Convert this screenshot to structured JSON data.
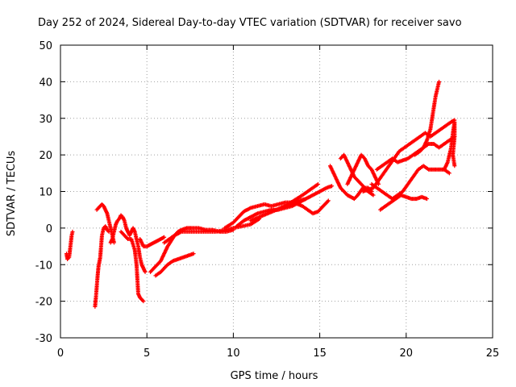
{
  "chart_data": {
    "type": "scatter",
    "title": "Day 252 of 2024, Sidereal Day-to-day VTEC variation (SDTVAR) for receiver savo",
    "xlabel": "GPS time / hours",
    "ylabel": "SDTVAR / TECUs",
    "xlim": [
      0,
      25
    ],
    "ylim": [
      -30,
      50
    ],
    "x_ticks": [
      0,
      5,
      10,
      15,
      20,
      25
    ],
    "y_ticks": [
      -30,
      -20,
      -10,
      0,
      10,
      20,
      30,
      40,
      50
    ],
    "grid": true,
    "marker": "+",
    "color": "#ff0000",
    "series": [
      {
        "name": "s1",
        "points": [
          [
            0.35,
            -7
          ],
          [
            0.4,
            -8.5
          ],
          [
            0.5,
            -8
          ],
          [
            0.55,
            -6
          ],
          [
            0.6,
            -4
          ],
          [
            0.65,
            -2
          ],
          [
            0.7,
            -1
          ]
        ]
      },
      {
        "name": "s2",
        "points": [
          [
            2.0,
            -21.5
          ],
          [
            2.05,
            -19
          ],
          [
            2.1,
            -16
          ],
          [
            2.15,
            -13
          ],
          [
            2.2,
            -10.5
          ],
          [
            2.3,
            -8
          ],
          [
            2.35,
            -5
          ],
          [
            2.4,
            -2
          ],
          [
            2.5,
            0
          ],
          [
            2.6,
            0.5
          ],
          [
            2.7,
            -0.5
          ],
          [
            2.8,
            -1
          ]
        ]
      },
      {
        "name": "s3",
        "points": [
          [
            2.1,
            5
          ],
          [
            2.2,
            5.5
          ],
          [
            2.3,
            6
          ],
          [
            2.4,
            6.5
          ],
          [
            2.5,
            6
          ],
          [
            2.6,
            5
          ],
          [
            2.7,
            4
          ],
          [
            2.8,
            2
          ],
          [
            2.9,
            0
          ],
          [
            3.0,
            -2
          ],
          [
            3.1,
            -4
          ]
        ]
      },
      {
        "name": "s4",
        "points": [
          [
            2.9,
            -4
          ],
          [
            3.0,
            -3
          ],
          [
            3.1,
            -1
          ],
          [
            3.2,
            1
          ],
          [
            3.3,
            2
          ],
          [
            3.4,
            2.5
          ],
          [
            3.5,
            3.5
          ],
          [
            3.6,
            3
          ],
          [
            3.7,
            2
          ],
          [
            3.8,
            0
          ],
          [
            3.9,
            -1
          ],
          [
            4.0,
            -2
          ],
          [
            4.1,
            -1
          ],
          [
            4.2,
            0
          ],
          [
            4.3,
            -1
          ],
          [
            4.4,
            -3
          ],
          [
            4.5,
            -5
          ],
          [
            4.6,
            -8
          ],
          [
            4.7,
            -10
          ],
          [
            4.8,
            -11
          ],
          [
            4.9,
            -12
          ]
        ]
      },
      {
        "name": "s5",
        "points": [
          [
            3.5,
            -1
          ],
          [
            3.7,
            -2
          ],
          [
            3.9,
            -3
          ],
          [
            4.1,
            -3
          ],
          [
            4.3,
            -6
          ],
          [
            4.4,
            -10
          ],
          [
            4.45,
            -14
          ],
          [
            4.5,
            -18
          ],
          [
            4.6,
            -19
          ],
          [
            4.7,
            -19.5
          ],
          [
            4.8,
            -20
          ]
        ]
      },
      {
        "name": "s6",
        "points": [
          [
            4.6,
            -3
          ],
          [
            4.8,
            -5
          ],
          [
            5.0,
            -5
          ],
          [
            5.2,
            -4.5
          ],
          [
            5.4,
            -4
          ],
          [
            5.6,
            -3.5
          ],
          [
            5.8,
            -3
          ],
          [
            6.0,
            -2.5
          ]
        ]
      },
      {
        "name": "s7",
        "points": [
          [
            5.2,
            -12
          ],
          [
            5.4,
            -11
          ],
          [
            5.6,
            -10
          ],
          [
            5.8,
            -9
          ],
          [
            6.0,
            -7
          ],
          [
            6.2,
            -5
          ],
          [
            6.4,
            -3.5
          ],
          [
            6.6,
            -2
          ],
          [
            6.8,
            -1
          ],
          [
            7.0,
            -0.5
          ],
          [
            7.3,
            0
          ],
          [
            7.6,
            0
          ],
          [
            8.0,
            0
          ],
          [
            8.4,
            -0.5
          ],
          [
            8.8,
            -0.5
          ],
          [
            9.2,
            -1
          ],
          [
            9.6,
            -1
          ],
          [
            10.0,
            -0.5
          ]
        ]
      },
      {
        "name": "s8",
        "points": [
          [
            5.5,
            -13
          ],
          [
            5.8,
            -12
          ],
          [
            6.0,
            -11
          ],
          [
            6.2,
            -10
          ],
          [
            6.5,
            -9
          ],
          [
            6.8,
            -8.5
          ],
          [
            7.1,
            -8
          ],
          [
            7.4,
            -7.5
          ],
          [
            7.7,
            -7
          ]
        ]
      },
      {
        "name": "s9",
        "points": [
          [
            6.0,
            -4
          ],
          [
            6.3,
            -3
          ],
          [
            6.6,
            -2
          ],
          [
            7.0,
            -1
          ],
          [
            7.5,
            -1
          ],
          [
            8.0,
            -1
          ],
          [
            8.5,
            -1
          ],
          [
            9.0,
            -1
          ],
          [
            9.5,
            -0.5
          ],
          [
            10.0,
            0
          ],
          [
            10.5,
            0.5
          ],
          [
            11.0,
            1
          ],
          [
            11.5,
            2.5
          ]
        ]
      },
      {
        "name": "s10",
        "points": [
          [
            9.5,
            0
          ],
          [
            10.0,
            1.5
          ],
          [
            10.3,
            3
          ],
          [
            10.6,
            4.5
          ],
          [
            11.0,
            5.5
          ],
          [
            11.4,
            6
          ],
          [
            11.8,
            6.5
          ],
          [
            12.2,
            6
          ],
          [
            12.6,
            6.5
          ],
          [
            13.0,
            7
          ],
          [
            13.4,
            7
          ],
          [
            13.8,
            7.5
          ],
          [
            14.2,
            8
          ]
        ]
      },
      {
        "name": "s11",
        "points": [
          [
            10.2,
            0.5
          ],
          [
            10.6,
            2
          ],
          [
            11.0,
            3
          ],
          [
            11.4,
            4
          ],
          [
            11.8,
            4.5
          ],
          [
            12.2,
            5
          ],
          [
            12.6,
            5
          ],
          [
            13.0,
            5.5
          ],
          [
            13.4,
            6
          ],
          [
            13.8,
            7
          ],
          [
            14.2,
            8
          ],
          [
            14.6,
            9
          ],
          [
            15.0,
            10
          ],
          [
            15.4,
            11
          ],
          [
            15.7,
            11.5
          ]
        ]
      },
      {
        "name": "s12",
        "points": [
          [
            11.0,
            2
          ],
          [
            11.5,
            3
          ],
          [
            12.0,
            4
          ],
          [
            12.5,
            5
          ],
          [
            13.0,
            6
          ],
          [
            13.5,
            7.5
          ],
          [
            14.0,
            9
          ],
          [
            14.3,
            10
          ],
          [
            14.6,
            11
          ],
          [
            14.9,
            12
          ]
        ]
      },
      {
        "name": "s13",
        "points": [
          [
            12.0,
            4.5
          ],
          [
            12.5,
            5
          ],
          [
            13.0,
            6
          ],
          [
            13.5,
            7
          ],
          [
            14.0,
            6
          ],
          [
            14.3,
            5
          ],
          [
            14.6,
            4
          ],
          [
            14.9,
            4.5
          ],
          [
            15.2,
            6
          ],
          [
            15.5,
            7.5
          ]
        ]
      },
      {
        "name": "s14",
        "points": [
          [
            15.6,
            17
          ],
          [
            16.0,
            13
          ],
          [
            16.2,
            11
          ],
          [
            16.4,
            10
          ],
          [
            16.6,
            9
          ],
          [
            16.8,
            8.5
          ],
          [
            17.0,
            8
          ],
          [
            17.2,
            9
          ],
          [
            17.5,
            11
          ],
          [
            17.8,
            10
          ],
          [
            18.1,
            9
          ]
        ]
      },
      {
        "name": "s15",
        "points": [
          [
            16.2,
            19
          ],
          [
            16.4,
            20
          ],
          [
            16.6,
            18
          ],
          [
            16.8,
            16
          ],
          [
            17.0,
            14
          ],
          [
            17.2,
            13
          ],
          [
            17.4,
            12
          ],
          [
            17.6,
            11
          ],
          [
            17.8,
            11
          ],
          [
            18.0,
            10
          ]
        ]
      },
      {
        "name": "s16",
        "points": [
          [
            16.6,
            12
          ],
          [
            16.8,
            14
          ],
          [
            17.0,
            16
          ],
          [
            17.2,
            18
          ],
          [
            17.4,
            20
          ],
          [
            17.6,
            19
          ],
          [
            17.8,
            17
          ],
          [
            18.0,
            16
          ],
          [
            18.2,
            14
          ],
          [
            18.4,
            12
          ]
        ]
      },
      {
        "name": "s17",
        "points": [
          [
            18.0,
            12
          ],
          [
            18.3,
            11
          ],
          [
            18.6,
            10
          ],
          [
            18.9,
            9
          ],
          [
            19.2,
            8
          ],
          [
            19.5,
            9
          ],
          [
            19.8,
            10
          ],
          [
            20.1,
            12
          ],
          [
            20.4,
            14
          ],
          [
            20.7,
            16
          ],
          [
            21.0,
            17
          ],
          [
            21.3,
            16
          ],
          [
            21.6,
            16
          ],
          [
            21.9,
            16
          ],
          [
            22.2,
            16
          ],
          [
            22.5,
            15
          ]
        ]
      },
      {
        "name": "s18",
        "points": [
          [
            18.5,
            5
          ],
          [
            18.8,
            6
          ],
          [
            19.1,
            7
          ],
          [
            19.4,
            8
          ],
          [
            19.7,
            9
          ],
          [
            20.0,
            8.5
          ],
          [
            20.3,
            8
          ],
          [
            20.6,
            8
          ],
          [
            20.9,
            8.5
          ],
          [
            21.2,
            8
          ]
        ]
      },
      {
        "name": "s19",
        "points": [
          [
            17.5,
            10
          ],
          [
            17.8,
            10.5
          ],
          [
            18.1,
            11
          ],
          [
            18.4,
            13
          ],
          [
            18.7,
            15
          ],
          [
            19.0,
            17
          ],
          [
            19.3,
            19
          ],
          [
            19.6,
            21
          ],
          [
            19.9,
            22
          ],
          [
            20.2,
            23
          ],
          [
            20.5,
            24
          ],
          [
            20.8,
            25
          ],
          [
            21.1,
            26
          ],
          [
            21.4,
            25
          ],
          [
            21.7,
            26
          ],
          [
            22.0,
            27
          ],
          [
            22.3,
            28
          ],
          [
            22.6,
            29
          ],
          [
            22.8,
            29.5
          ]
        ]
      },
      {
        "name": "s20",
        "points": [
          [
            18.3,
            16
          ],
          [
            18.6,
            17
          ],
          [
            18.9,
            18
          ],
          [
            19.2,
            19
          ],
          [
            19.5,
            18
          ],
          [
            19.8,
            18.5
          ],
          [
            20.1,
            19
          ],
          [
            20.4,
            20
          ],
          [
            20.7,
            21
          ],
          [
            21.0,
            22
          ],
          [
            21.3,
            23
          ],
          [
            21.6,
            23
          ],
          [
            21.9,
            22
          ],
          [
            22.2,
            23
          ],
          [
            22.5,
            24
          ],
          [
            22.8,
            25
          ]
        ]
      },
      {
        "name": "s21",
        "points": [
          [
            20.5,
            20
          ],
          [
            20.8,
            21
          ],
          [
            21.0,
            22
          ],
          [
            21.2,
            24
          ],
          [
            21.4,
            27
          ],
          [
            21.5,
            30
          ],
          [
            21.6,
            33
          ],
          [
            21.7,
            36
          ],
          [
            21.8,
            38
          ],
          [
            21.9,
            40
          ]
        ]
      },
      {
        "name": "s22",
        "points": [
          [
            22.2,
            16
          ],
          [
            22.4,
            18
          ],
          [
            22.6,
            22
          ],
          [
            22.7,
            26
          ],
          [
            22.8,
            29
          ],
          [
            22.8,
            25
          ],
          [
            22.7,
            20
          ],
          [
            22.8,
            17
          ]
        ]
      }
    ]
  }
}
